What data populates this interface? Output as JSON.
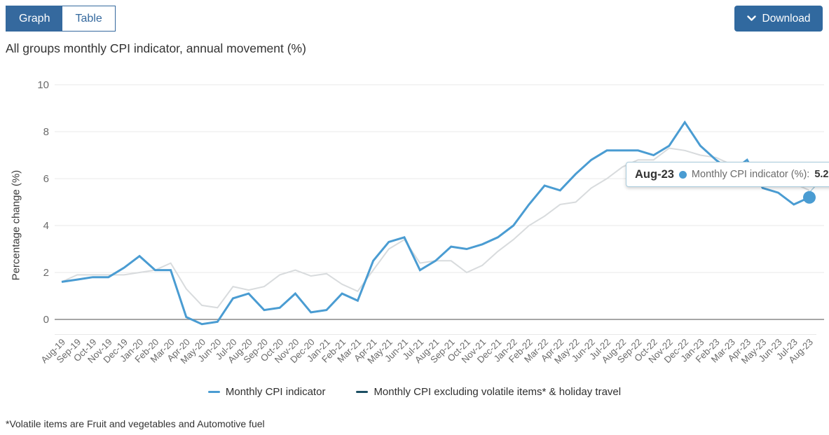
{
  "view_toggle": {
    "graph_label": "Graph",
    "table_label": "Table",
    "active_view": "Graph"
  },
  "download": {
    "label": "Download"
  },
  "header": {
    "chart_title": "All groups monthly CPI indicator, annual movement (%)"
  },
  "tooltip": {
    "date": "Aug-23",
    "series_label": "Monthly CPI indicator (%):",
    "value": "5.2"
  },
  "legend": {
    "items": [
      {
        "label": "Monthly CPI indicator",
        "color": "#4A9CD2"
      },
      {
        "label": "Monthly CPI excluding volatile items* & holiday travel",
        "color": "#1C4F63"
      }
    ]
  },
  "footnote": "*Volatile items are Fruit and vegetables and Automotive fuel",
  "colors": {
    "brand_blue": "#35699E",
    "download_blue": "#31699F",
    "series1_line": "#4A9CD2",
    "series2_legend": "#1C4F63",
    "series2_line_dimmed": "#D8DBDD",
    "gridline": "#E8E8E8",
    "zero_axis": "#999999",
    "axis_text": "#6b6b6b",
    "tooltip_border": "#A9CBDC"
  },
  "chart_data": {
    "type": "line",
    "title": "All groups monthly CPI indicator, annual movement (%)",
    "xlabel": "",
    "ylabel": "Percentage change (%)",
    "ylim": [
      -0.65,
      10
    ],
    "yticks": [
      0,
      2,
      4,
      6,
      8,
      10
    ],
    "grid": true,
    "legend_position": "bottom",
    "categories": [
      "Aug-19",
      "Sep-19",
      "Oct-19",
      "Nov-19",
      "Dec-19",
      "Jan-20",
      "Feb-20",
      "Mar-20",
      "Apr-20",
      "May-20",
      "Jun-20",
      "Jul-20",
      "Aug-20",
      "Sep-20",
      "Oct-20",
      "Nov-20",
      "Dec-20",
      "Jan-21",
      "Feb-21",
      "Mar-21",
      "Apr-21",
      "May-21",
      "Jun-21",
      "Jul-21",
      "Aug-21",
      "Sep-21",
      "Oct-21",
      "Nov-21",
      "Dec-21",
      "Jan-22",
      "Feb-22",
      "Mar-22",
      "Apr-22",
      "May-22",
      "Jun-22",
      "Jul-22",
      "Aug-22",
      "Sep-22",
      "Oct-22",
      "Nov-22",
      "Dec-22",
      "Jan-23",
      "Feb-23",
      "Mar-23",
      "Apr-23",
      "May-23",
      "Jun-23",
      "Jul-23",
      "Aug-23"
    ],
    "series": [
      {
        "name": "Monthly CPI indicator",
        "color": "#4A9CD2",
        "values": [
          1.6,
          1.7,
          1.8,
          1.8,
          2.2,
          2.7,
          2.1,
          2.1,
          0.1,
          -0.2,
          -0.1,
          0.9,
          1.1,
          0.4,
          0.5,
          1.1,
          0.3,
          0.4,
          1.1,
          0.8,
          2.5,
          3.3,
          3.5,
          2.1,
          2.5,
          3.1,
          3.0,
          3.2,
          3.5,
          4.0,
          4.9,
          5.7,
          5.5,
          6.2,
          6.8,
          7.2,
          7.2,
          7.2,
          7.0,
          7.4,
          8.4,
          7.4,
          6.8,
          6.3,
          6.8,
          5.6,
          5.4,
          4.9,
          5.2
        ]
      },
      {
        "name": "Monthly CPI excluding volatile items* & holiday travel",
        "color": "#1C4F63",
        "rendered_dimmed_color": "#D8DBDD",
        "values": [
          1.6,
          1.9,
          1.9,
          1.9,
          1.9,
          2.0,
          2.1,
          2.4,
          1.3,
          0.6,
          0.5,
          1.4,
          1.25,
          1.4,
          1.9,
          2.1,
          1.85,
          1.95,
          1.5,
          1.2,
          2.1,
          3.0,
          3.4,
          2.4,
          2.5,
          2.5,
          2.0,
          2.3,
          2.9,
          3.4,
          4.0,
          4.4,
          4.9,
          5.0,
          5.6,
          6.0,
          6.5,
          6.8,
          6.8,
          7.3,
          7.2,
          7.0,
          6.9,
          6.6,
          6.5,
          6.4,
          6.1,
          5.8,
          5.5
        ]
      }
    ],
    "highlight": {
      "category": "Aug-23",
      "series": "Monthly CPI indicator",
      "value": 5.2
    }
  }
}
